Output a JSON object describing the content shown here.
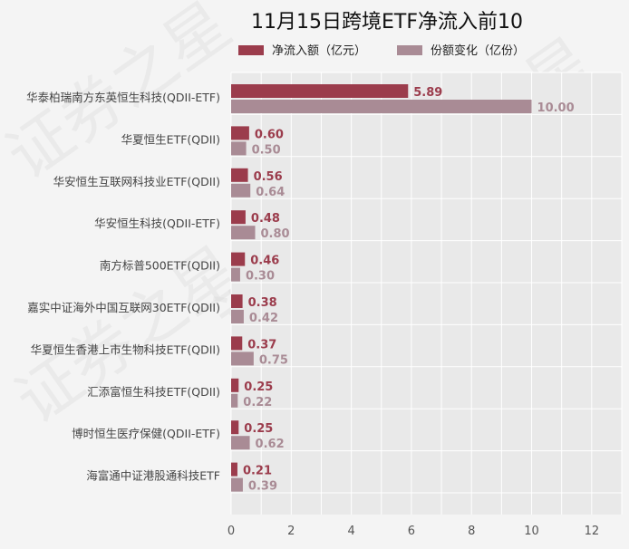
{
  "chart_data": {
    "type": "bar",
    "orientation": "horizontal",
    "title": "11月15日跨境ETF净流入前10",
    "categories": [
      "华泰柏瑞南方东英恒生科技(QDII-ETF)",
      "华夏恒生ETF(QDII)",
      "华安恒生互联网科技业ETF(QDII)",
      "华安恒生科技(QDII-ETF)",
      "南方标普500ETF(QDII)",
      "嘉实中证海外中国互联网30ETF(QDII)",
      "华夏恒生香港上市生物科技ETF(QDII)",
      "汇添富恒生科技ETF(QDII)",
      "博时恒生医疗保健(QDII-ETF)",
      "海富通中证港股通科技ETF"
    ],
    "series": [
      {
        "name": "净流入额（亿元）",
        "color": "#9b3c4c",
        "values": [
          5.89,
          0.6,
          0.56,
          0.48,
          0.46,
          0.38,
          0.37,
          0.25,
          0.25,
          0.21
        ],
        "labels": [
          "5.89",
          "0.60",
          "0.56",
          "0.48",
          "0.46",
          "0.38",
          "0.37",
          "0.25",
          "0.25",
          "0.21"
        ]
      },
      {
        "name": "份额变化（亿份）",
        "color": "#a98b95",
        "values": [
          10.0,
          0.5,
          0.64,
          0.8,
          0.3,
          0.42,
          0.75,
          0.22,
          0.62,
          0.39
        ],
        "labels": [
          "10.00",
          "0.50",
          "0.64",
          "0.80",
          "0.30",
          "0.42",
          "0.75",
          "0.22",
          "0.62",
          "0.39"
        ]
      }
    ],
    "xlim": [
      0,
      13
    ],
    "xticks": [
      "0",
      "2",
      "4",
      "6",
      "8",
      "10",
      "12"
    ],
    "grid": true,
    "legend_position": "top",
    "watermark": "证券之星"
  }
}
